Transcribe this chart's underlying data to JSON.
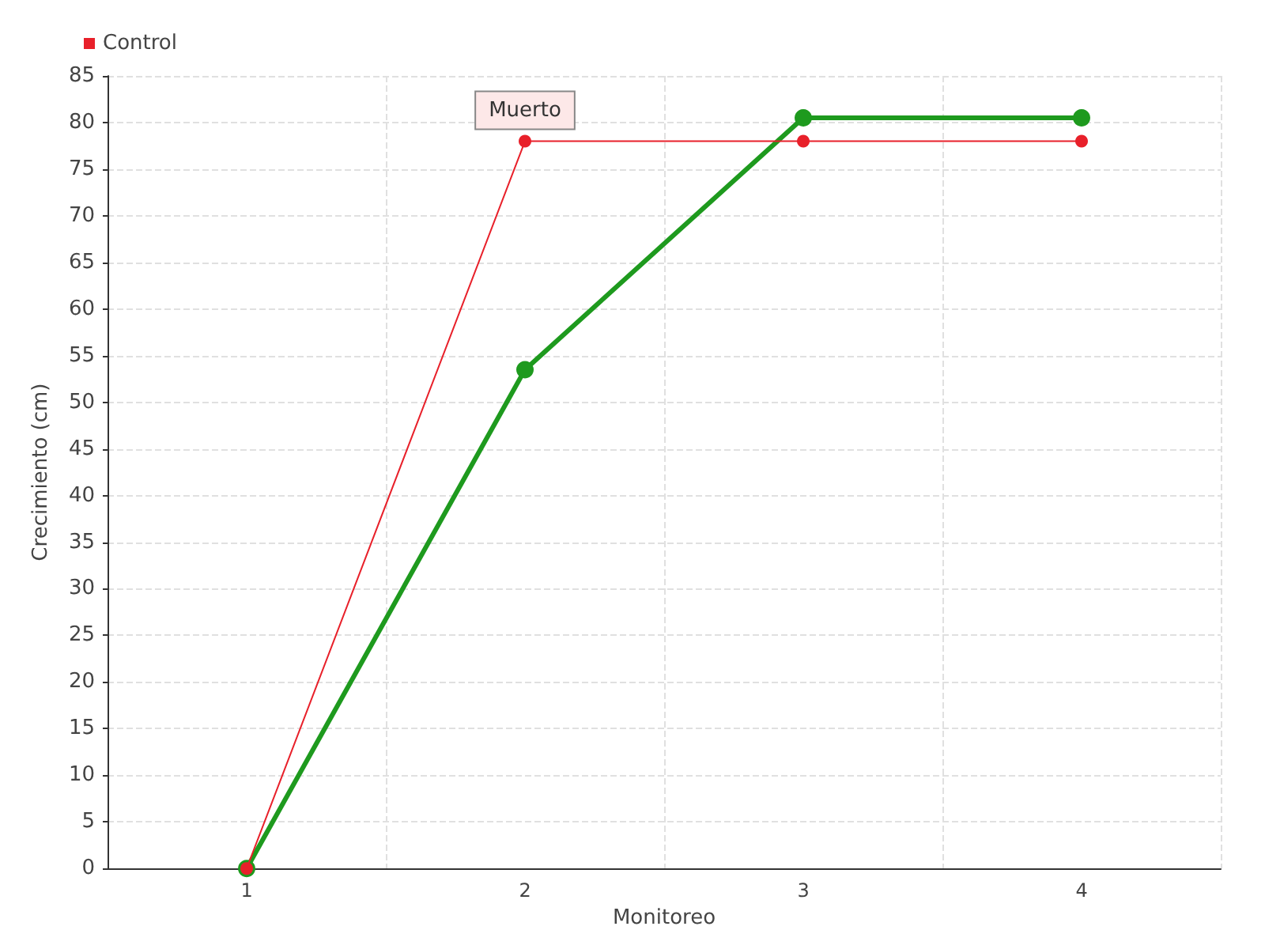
{
  "chart_data": {
    "type": "line",
    "xlabel": "Monitoreo",
    "ylabel": "Crecimiento (cm)",
    "categories": [
      "1",
      "2",
      "3",
      "4"
    ],
    "series": [
      {
        "color": "#1e9a1e",
        "values": [
          0,
          53.5,
          80.5,
          80.5
        ]
      },
      {
        "name": "Control",
        "color": "#e8202a",
        "values": [
          0,
          78,
          78,
          78
        ]
      }
    ],
    "annotations": [
      {
        "text": "Muerto",
        "x": "2",
        "y": 78
      }
    ],
    "ylim": [
      0,
      85
    ],
    "yticks": [
      0,
      5,
      10,
      15,
      20,
      25,
      30,
      35,
      40,
      45,
      50,
      55,
      60,
      65,
      70,
      75,
      80,
      85
    ],
    "grid": true,
    "legend": "top left",
    "marker": "circle",
    "line_style": "solid"
  }
}
